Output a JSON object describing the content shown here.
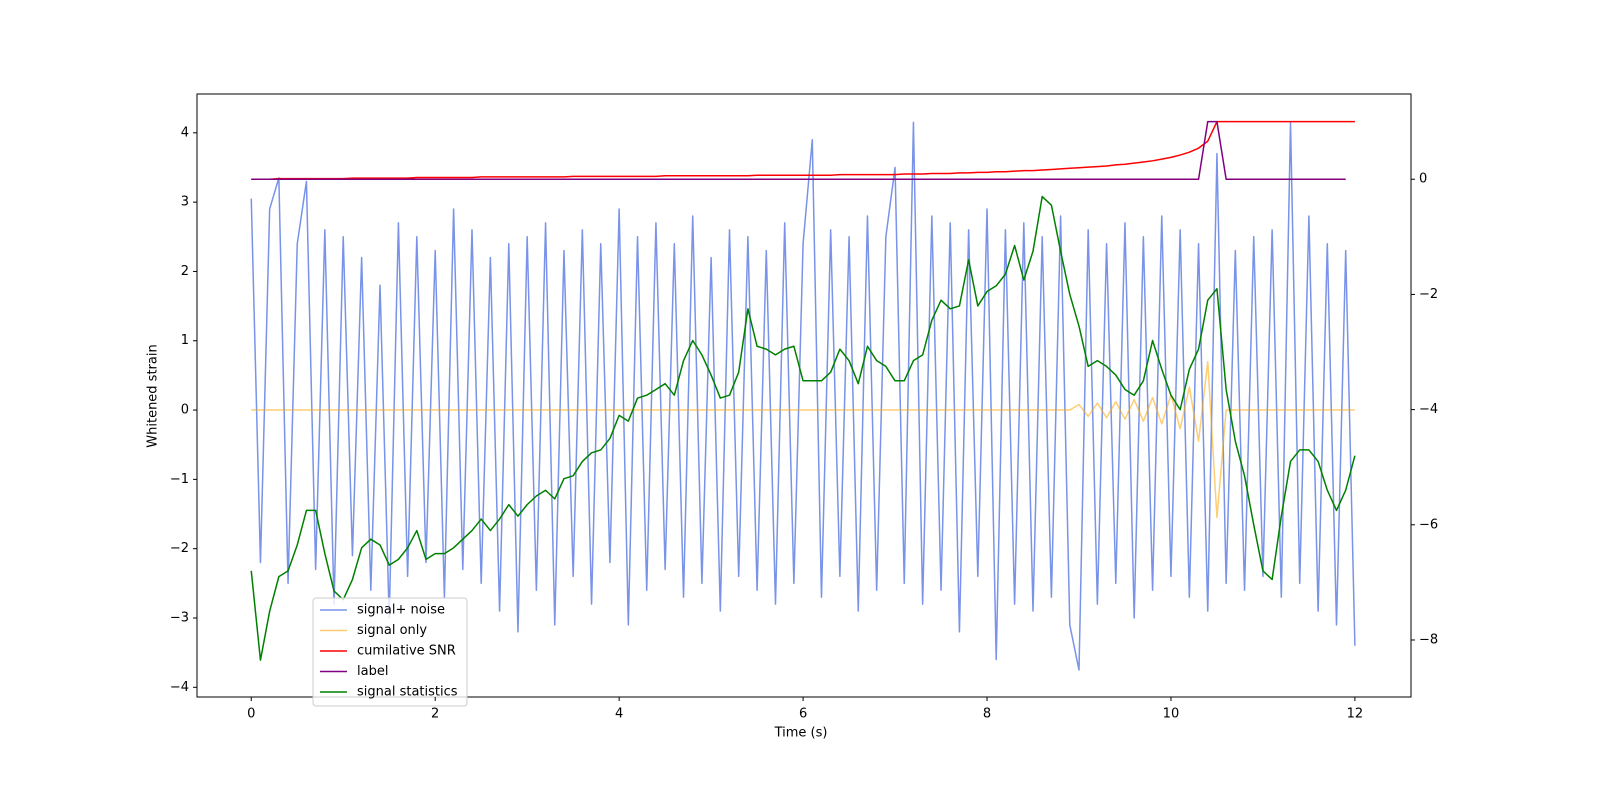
{
  "chart_data": {
    "type": "line",
    "xlabel": "Time (s)",
    "ylabel": "Whitened strain",
    "x": [
      0,
      0.1,
      0.2,
      0.3,
      0.4,
      0.5,
      0.6,
      0.7,
      0.8,
      0.9,
      1,
      1.1,
      1.2,
      1.3,
      1.4,
      1.5,
      1.6,
      1.7,
      1.8,
      1.9,
      2,
      2.1,
      2.2,
      2.3,
      2.4,
      2.5,
      2.6,
      2.7,
      2.8,
      2.9,
      3,
      3.1,
      3.2,
      3.3,
      3.4,
      3.5,
      3.6,
      3.7,
      3.8,
      3.9,
      4,
      4.1,
      4.2,
      4.3,
      4.4,
      4.5,
      4.6,
      4.7,
      4.8,
      4.9,
      5,
      5.1,
      5.2,
      5.3,
      5.4,
      5.5,
      5.6,
      5.7,
      5.8,
      5.9,
      6,
      6.1,
      6.2,
      6.3,
      6.4,
      6.5,
      6.6,
      6.7,
      6.8,
      6.9,
      7,
      7.1,
      7.2,
      7.3,
      7.4,
      7.5,
      7.6,
      7.7,
      7.8,
      7.9,
      8,
      8.1,
      8.2,
      8.3,
      8.4,
      8.5,
      8.6,
      8.7,
      8.8,
      8.9,
      9,
      9.1,
      9.2,
      9.3,
      9.4,
      9.5,
      9.6,
      9.7,
      9.8,
      9.9,
      10,
      10.1,
      10.2,
      10.3,
      10.4,
      10.5,
      10.6,
      10.7,
      10.8,
      10.9,
      11,
      11.1,
      11.2,
      11.3,
      11.4,
      11.5,
      11.6,
      11.7,
      11.8,
      11.9,
      12
    ],
    "series": [
      {
        "name": "signal+ noise",
        "color": "#7893e8",
        "axis": "y",
        "values": [
          3.05,
          -2.2,
          2.9,
          3.35,
          -2.5,
          2.4,
          3.3,
          -2.3,
          2.6,
          -2.8,
          2.5,
          -2.1,
          2.2,
          -2.6,
          1.8,
          -3.0,
          2.7,
          -2.4,
          2.5,
          -2.2,
          2.3,
          -2.7,
          2.9,
          -2.3,
          2.6,
          -2.5,
          2.2,
          -2.9,
          2.4,
          -3.2,
          2.5,
          -2.6,
          2.7,
          -3.1,
          2.3,
          -2.4,
          2.6,
          -2.8,
          2.4,
          -2.2,
          2.9,
          -3.1,
          2.5,
          -2.6,
          2.7,
          -2.3,
          2.4,
          -2.7,
          2.8,
          -2.5,
          2.2,
          -2.9,
          2.6,
          -2.4,
          2.5,
          -2.6,
          2.3,
          -2.8,
          2.7,
          -2.5,
          2.4,
          3.9,
          -2.7,
          2.6,
          -2.4,
          2.5,
          -2.9,
          2.8,
          -2.6,
          2.5,
          3.5,
          -2.5,
          4.15,
          -2.8,
          2.8,
          -2.6,
          2.7,
          -3.2,
          2.6,
          -2.4,
          2.9,
          -3.6,
          2.6,
          -2.8,
          2.7,
          -2.9,
          2.5,
          -2.7,
          2.8,
          -3.1,
          -3.75,
          2.6,
          -2.8,
          2.4,
          -2.5,
          2.7,
          -3.0,
          2.5,
          -2.6,
          2.8,
          -2.4,
          2.6,
          -2.7,
          2.4,
          -2.9,
          3.7,
          -2.5,
          2.3,
          -2.6,
          2.5,
          -2.4,
          2.6,
          -2.7,
          4.15,
          -2.5,
          2.8,
          -2.9,
          2.4,
          -3.1,
          2.3,
          -3.4
        ]
      },
      {
        "name": "signal only",
        "color": "#ffa500",
        "axis": "y",
        "values": [
          0,
          0,
          0,
          0,
          0,
          0,
          0,
          0,
          0,
          0,
          0,
          0,
          0,
          0,
          0,
          0,
          0,
          0,
          0,
          0,
          0,
          0,
          0,
          0,
          0,
          0,
          0,
          0,
          0,
          0,
          0,
          0,
          0,
          0,
          0,
          0,
          0,
          0,
          0,
          0,
          0,
          0,
          0,
          0,
          0,
          0,
          0,
          0,
          0,
          0,
          0,
          0,
          0,
          0,
          0,
          0,
          0,
          0,
          0,
          0,
          0,
          0,
          0,
          0,
          0,
          0,
          0,
          0,
          0,
          0,
          0,
          0,
          0,
          0,
          0,
          0,
          0,
          0,
          0,
          0,
          0,
          0,
          0,
          0,
          0,
          0,
          0,
          0,
          0,
          0,
          0.08,
          -0.09,
          0.1,
          -0.11,
          0.12,
          -0.13,
          0.15,
          -0.16,
          0.18,
          -0.2,
          0.22,
          -0.27,
          0.33,
          -0.45,
          0.7,
          -1.55,
          0,
          0,
          0,
          0,
          0,
          0,
          0,
          0,
          0,
          0,
          0,
          0,
          0,
          0,
          0
        ]
      },
      {
        "name": "cumilative SNR",
        "color": "#ff0000",
        "axis": "y2",
        "values": [
          0,
          0,
          0,
          0.01,
          0.01,
          0.01,
          0.01,
          0.01,
          0.01,
          0.01,
          0.01,
          0.02,
          0.02,
          0.02,
          0.02,
          0.02,
          0.02,
          0.02,
          0.03,
          0.03,
          0.03,
          0.03,
          0.03,
          0.03,
          0.03,
          0.04,
          0.04,
          0.04,
          0.04,
          0.04,
          0.04,
          0.04,
          0.04,
          0.04,
          0.04,
          0.05,
          0.05,
          0.05,
          0.05,
          0.05,
          0.05,
          0.05,
          0.05,
          0.05,
          0.05,
          0.06,
          0.06,
          0.06,
          0.06,
          0.06,
          0.06,
          0.06,
          0.06,
          0.06,
          0.06,
          0.07,
          0.07,
          0.07,
          0.07,
          0.07,
          0.07,
          0.07,
          0.07,
          0.07,
          0.08,
          0.08,
          0.08,
          0.08,
          0.08,
          0.08,
          0.08,
          0.09,
          0.09,
          0.09,
          0.1,
          0.1,
          0.1,
          0.11,
          0.11,
          0.12,
          0.12,
          0.13,
          0.13,
          0.14,
          0.15,
          0.15,
          0.16,
          0.17,
          0.18,
          0.19,
          0.2,
          0.21,
          0.22,
          0.23,
          0.25,
          0.26,
          0.28,
          0.3,
          0.32,
          0.35,
          0.38,
          0.42,
          0.47,
          0.54,
          0.66,
          1.0,
          1.0,
          1.0,
          1.0,
          1.0,
          1.0,
          1.0,
          1.0,
          1.0,
          1.0,
          1.0,
          1.0,
          1.0,
          1.0,
          1.0,
          1.0
        ]
      },
      {
        "name": "label",
        "color": "#800080",
        "axis": "y2",
        "values": [
          0,
          0,
          0,
          0,
          0,
          0,
          0,
          0,
          0,
          0,
          0,
          0,
          0,
          0,
          0,
          0,
          0,
          0,
          0,
          0,
          0,
          0,
          0,
          0,
          0,
          0,
          0,
          0,
          0,
          0,
          0,
          0,
          0,
          0,
          0,
          0,
          0,
          0,
          0,
          0,
          0,
          0,
          0,
          0,
          0,
          0,
          0,
          0,
          0,
          0,
          0,
          0,
          0,
          0,
          0,
          0,
          0,
          0,
          0,
          0,
          0,
          0,
          0,
          0,
          0,
          0,
          0,
          0,
          0,
          0,
          0,
          0,
          0,
          0,
          0,
          0,
          0,
          0,
          0,
          0,
          0,
          0,
          0,
          0,
          0,
          0,
          0,
          0,
          0,
          0,
          0,
          0,
          0,
          0,
          0,
          0,
          0,
          0,
          0,
          0,
          0,
          0,
          0,
          0,
          1.0,
          1.0,
          0,
          0,
          0,
          0,
          0,
          0,
          0,
          0,
          0,
          0,
          0,
          0,
          0,
          0,
          null
        ]
      },
      {
        "name": "signal statistics",
        "color": "#008000",
        "axis": "y2",
        "values": [
          -6.8,
          -8.35,
          -7.5,
          -6.9,
          -6.8,
          -6.35,
          -5.75,
          -5.75,
          -6.5,
          -7.15,
          -7.3,
          -6.95,
          -6.4,
          -6.25,
          -6.35,
          -6.7,
          -6.6,
          -6.4,
          -6.1,
          -6.6,
          -6.5,
          -6.5,
          -6.4,
          -6.25,
          -6.1,
          -5.9,
          -6.1,
          -5.9,
          -5.65,
          -5.85,
          -5.65,
          -5.5,
          -5.4,
          -5.55,
          -5.2,
          -5.15,
          -4.9,
          -4.75,
          -4.7,
          -4.5,
          -4.1,
          -4.2,
          -3.8,
          -3.75,
          -3.65,
          -3.55,
          -3.75,
          -3.15,
          -2.8,
          -3.05,
          -3.4,
          -3.8,
          -3.75,
          -3.35,
          -2.25,
          -2.9,
          -2.95,
          -3.05,
          -2.95,
          -2.9,
          -3.5,
          -3.5,
          -3.5,
          -3.35,
          -2.95,
          -3.15,
          -3.55,
          -2.9,
          -3.15,
          -3.25,
          -3.5,
          -3.5,
          -3.15,
          -3.05,
          -2.45,
          -2.1,
          -2.25,
          -2.2,
          -1.4,
          -2.2,
          -1.95,
          -1.85,
          -1.65,
          -1.15,
          -1.75,
          -1.25,
          -0.3,
          -0.45,
          -1.25,
          -2.0,
          -2.55,
          -3.25,
          -3.15,
          -3.25,
          -3.4,
          -3.65,
          -3.75,
          -3.5,
          -2.8,
          -3.3,
          -3.75,
          -4.0,
          -3.3,
          -2.95,
          -2.1,
          -1.9,
          -3.65,
          -4.55,
          -5.15,
          -6.0,
          -6.8,
          -6.95,
          -5.85,
          -4.9,
          -4.7,
          -4.7,
          -4.9,
          -5.4,
          -5.75,
          -5.4,
          -4.8
        ]
      }
    ],
    "xlim": [
      -0.59,
      12.61
    ],
    "xticks": [
      0,
      2,
      4,
      6,
      8,
      10,
      12
    ],
    "ylim": [
      -4.14,
      4.56
    ],
    "yticks": [
      {
        "value": -4,
        "label": "−4"
      },
      {
        "value": -3,
        "label": "−3"
      },
      {
        "value": -2,
        "label": "−2"
      },
      {
        "value": -1,
        "label": "−1"
      },
      0,
      1,
      2,
      3,
      4
    ],
    "y2lim": [
      -8.99,
      1.48
    ],
    "y2ticks": [
      {
        "value": -8,
        "label": "−8"
      },
      {
        "value": -6,
        "label": "−6"
      },
      {
        "value": -4,
        "label": "−4"
      },
      {
        "value": -2,
        "label": "−2"
      },
      0
    ],
    "legend": "lower left"
  }
}
